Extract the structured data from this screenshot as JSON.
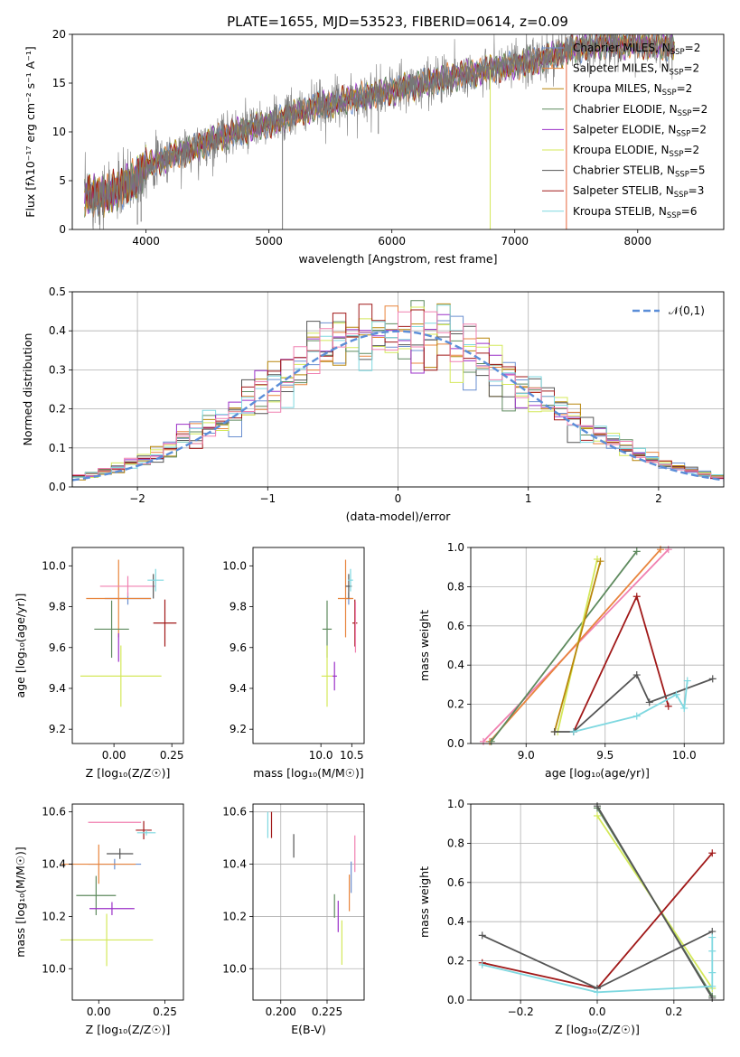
{
  "title": "PLATE=1655, MJD=53523, FIBERID=0614, z=0.09",
  "colors": {
    "chabrier_miles": "#6a8fd0",
    "salpeter_miles": "#e8843c",
    "kroupa_miles": "#b8860b",
    "chabrier_elodie": "#5e8a5e",
    "salpeter_elodie": "#9b30c8",
    "kroupa_elodie": "#d4e85a",
    "chabrier_stelib": "#555555",
    "salpeter_stelib": "#a01818",
    "kroupa_stelib": "#7fd8e0",
    "extra_pink": "#f080b0",
    "gauss": "#5b8ed8"
  },
  "chart_data": [
    {
      "id": "spectrum",
      "type": "line",
      "xlabel": "wavelength [Angstrom, rest frame]",
      "ylabel": "Flux [fλ10⁻¹⁷ erg cm⁻² s⁻¹ A⁻¹]",
      "xlim": [
        3400,
        8700
      ],
      "ylim": [
        0,
        20
      ],
      "xticks": [
        "4000",
        "5000",
        "6000",
        "7000",
        "8000"
      ],
      "yticks": [
        "0",
        "5",
        "10",
        "15",
        "20"
      ],
      "legend_position": "right",
      "legend": [
        {
          "key": "chabrier_miles",
          "base": "Chabrier MILES, N",
          "sub": "SSP",
          "tail": "=2"
        },
        {
          "key": "salpeter_miles",
          "base": "Salpeter MILES, N",
          "sub": "SSP",
          "tail": "=2"
        },
        {
          "key": "kroupa_miles",
          "base": "Kroupa MILES, N",
          "sub": "SSP",
          "tail": "=2"
        },
        {
          "key": "chabrier_elodie",
          "base": "Chabrier ELODIE, N",
          "sub": "SSP",
          "tail": "=2"
        },
        {
          "key": "salpeter_elodie",
          "base": "Salpeter ELODIE, N",
          "sub": "SSP",
          "tail": "=2"
        },
        {
          "key": "kroupa_elodie",
          "base": "Kroupa ELODIE, N",
          "sub": "SSP",
          "tail": "=2"
        },
        {
          "key": "chabrier_stelib",
          "base": "Chabrier STELIB, N",
          "sub": "SSP",
          "tail": "=5"
        },
        {
          "key": "salpeter_stelib",
          "base": "Salpeter STELIB, N",
          "sub": "SSP",
          "tail": "=3"
        },
        {
          "key": "kroupa_stelib",
          "base": "Kroupa STELIB, N",
          "sub": "SSP",
          "tail": "=6"
        }
      ],
      "continuum": [
        [
          3500,
          3.4
        ],
        [
          3700,
          3.6
        ],
        [
          3900,
          5.0
        ],
        [
          4000,
          6.5
        ],
        [
          4200,
          7.5
        ],
        [
          4400,
          8.3
        ],
        [
          4600,
          9.5
        ],
        [
          4800,
          10.2
        ],
        [
          5000,
          10.8
        ],
        [
          5200,
          11.8
        ],
        [
          5400,
          12.6
        ],
        [
          5600,
          13.2
        ],
        [
          5800,
          13.7
        ],
        [
          6000,
          14.2
        ],
        [
          6200,
          14.8
        ],
        [
          6400,
          15.4
        ],
        [
          6600,
          15.9
        ],
        [
          6800,
          16.4
        ],
        [
          7000,
          16.8
        ],
        [
          7200,
          17.4
        ],
        [
          7400,
          18.2
        ],
        [
          7600,
          18.8
        ],
        [
          7800,
          18.9
        ],
        [
          8000,
          19.0
        ],
        [
          8200,
          18.8
        ],
        [
          8300,
          18.7
        ]
      ],
      "absorption_dips": [
        [
          5110,
          0.0
        ],
        [
          5890,
          9.8
        ],
        [
          6800,
          0.0
        ],
        [
          7420,
          0.0
        ],
        [
          3930,
          0.5
        ],
        [
          3960,
          0.8
        ]
      ]
    },
    {
      "id": "residual_hist",
      "type": "line",
      "xlabel": "(data-model)/error",
      "ylabel": "Normed distribution",
      "xlim": [
        -2.5,
        2.5
      ],
      "ylim": [
        0,
        0.5
      ],
      "xticks": [
        "−2",
        "−1",
        "0",
        "1",
        "2"
      ],
      "yticks": [
        "0.0",
        "0.1",
        "0.2",
        "0.3",
        "0.4",
        "0.5"
      ],
      "legend": [
        {
          "key": "gauss",
          "label": "𝒩(0,1)"
        }
      ],
      "legend_position": "top-right",
      "bin_width": 0.1,
      "bin_start": -2.5
    },
    {
      "id": "age_vs_z",
      "type": "scatter",
      "xlabel": "Z [log₁₀(Z/Z☉)]",
      "ylabel": "age  [log₁₀(age/yr)]",
      "xlim": [
        -0.18,
        0.3
      ],
      "ylim": [
        9.13,
        10.09
      ],
      "xticks": [
        [
          0.0,
          "0.00"
        ],
        [
          0.25,
          "0.25"
        ]
      ],
      "yticks": [
        [
          9.2,
          "9.2"
        ],
        [
          9.4,
          "9.4"
        ],
        [
          9.6,
          "9.6"
        ],
        [
          9.8,
          "9.8"
        ],
        [
          10.0,
          "10.0"
        ]
      ],
      "points": [
        {
          "key": "chabrier_miles",
          "x": 0.06,
          "y": 9.84,
          "xe": 0.2,
          "ye": 0.06
        },
        {
          "key": "salpeter_miles",
          "x": 0.02,
          "y": 9.84,
          "xe": 0.28,
          "ye": 0.38
        },
        {
          "key": "extra_pink",
          "x": 0.06,
          "y": 9.9,
          "xe": 0.24,
          "ye": 0.1
        },
        {
          "key": "chabrier_elodie",
          "x": -0.01,
          "y": 9.69,
          "xe": 0.15,
          "ye": 0.28
        },
        {
          "key": "salpeter_elodie",
          "x": 0.02,
          "y": 9.6,
          "xe": 0.0,
          "ye": 0.14
        },
        {
          "key": "kroupa_elodie",
          "x": 0.03,
          "y": 9.46,
          "xe": 0.35,
          "ye": 0.3
        },
        {
          "key": "chabrier_stelib",
          "x": 0.17,
          "y": 9.9,
          "xe": 0.0,
          "ye": 0.12
        },
        {
          "key": "salpeter_stelib",
          "x": 0.22,
          "y": 9.72,
          "xe": 0.1,
          "ye": 0.23
        },
        {
          "key": "kroupa_stelib",
          "x": 0.18,
          "y": 9.93,
          "xe": 0.07,
          "ye": 0.11
        }
      ]
    },
    {
      "id": "age_vs_mass",
      "type": "scatter",
      "xlabel": "mass [log₁₀(M/M☉)]",
      "xlim": [
        8.9,
        10.7
      ],
      "ylim": [
        9.13,
        10.09
      ],
      "xticks": [
        [
          10.0,
          "10.0"
        ],
        [
          10.5,
          "10.5"
        ]
      ],
      "yticks": [
        [
          9.2,
          "9.2"
        ],
        [
          9.4,
          "9.4"
        ],
        [
          9.6,
          "9.6"
        ],
        [
          9.8,
          "9.8"
        ],
        [
          10.0,
          "10.0"
        ]
      ],
      "points": [
        {
          "key": "chabrier_miles",
          "x": 10.45,
          "y": 9.84,
          "xe": 0.1,
          "ye": 0.06
        },
        {
          "key": "salpeter_miles",
          "x": 10.4,
          "y": 9.84,
          "xe": 0.25,
          "ye": 0.38
        },
        {
          "key": "chabrier_elodie",
          "x": 10.1,
          "y": 9.69,
          "xe": 0.15,
          "ye": 0.28
        },
        {
          "key": "salpeter_elodie",
          "x": 10.22,
          "y": 9.46,
          "xe": 0.08,
          "ye": 0.14
        },
        {
          "key": "kroupa_elodie",
          "x": 10.1,
          "y": 9.46,
          "xe": 0.18,
          "ye": 0.3
        },
        {
          "key": "chabrier_stelib",
          "x": 10.45,
          "y": 9.9,
          "xe": 0.1,
          "ye": 0.12
        },
        {
          "key": "salpeter_stelib",
          "x": 10.55,
          "y": 9.72,
          "xe": 0.08,
          "ye": 0.23
        },
        {
          "key": "kroupa_stelib",
          "x": 10.48,
          "y": 9.93,
          "xe": 0.08,
          "ye": 0.11
        },
        {
          "key": "extra_pink",
          "x": 10.56,
          "y": 9.7,
          "xe": 0.0,
          "ye": 0.25
        }
      ]
    },
    {
      "id": "weight_vs_age",
      "type": "line",
      "xlabel": "age  [log₁₀(age/yr)]",
      "ylabel": "mass weight",
      "xlim": [
        8.65,
        10.25
      ],
      "ylim": [
        0,
        1
      ],
      "xticks": [
        [
          9.0,
          "9.0"
        ],
        [
          9.5,
          "9.5"
        ],
        [
          10.0,
          "10.0"
        ]
      ],
      "yticks": [
        [
          0,
          "0.0"
        ],
        [
          0.2,
          "0.2"
        ],
        [
          0.4,
          "0.4"
        ],
        [
          0.6,
          "0.6"
        ],
        [
          0.8,
          "0.8"
        ],
        [
          1.0,
          "1.0"
        ]
      ],
      "series": [
        {
          "key": "extra_pink",
          "x": [
            8.73,
            9.9
          ],
          "y": [
            0.01,
            0.99
          ]
        },
        {
          "key": "salpeter_miles",
          "x": 8.77,
          "x2": 9.85,
          "xs": [
            8.77,
            9.85
          ],
          "ys": [
            0.01,
            0.99
          ]
        },
        {
          "key": "chabrier_elodie",
          "xs": [
            8.78,
            9.7
          ],
          "ys": [
            0.01,
            0.98
          ]
        },
        {
          "key": "kroupa_elodie",
          "xs": [
            9.2,
            9.45
          ],
          "ys": [
            0.06,
            0.94
          ]
        },
        {
          "key": "kroupa_miles",
          "xs": [
            9.18,
            9.47
          ],
          "ys": [
            0.06,
            0.93
          ]
        },
        {
          "key": "salpeter_stelib",
          "xs": [
            9.3,
            9.7,
            9.9
          ],
          "ys": [
            0.06,
            0.75,
            0.19
          ]
        },
        {
          "key": "chabrier_stelib",
          "xs": [
            9.18,
            9.3,
            9.7,
            9.78,
            10.18
          ],
          "ys": [
            0.06,
            0.06,
            0.35,
            0.21,
            0.33
          ]
        },
        {
          "key": "kroupa_stelib",
          "xs": [
            9.3,
            9.7,
            9.95,
            10.0,
            10.02
          ],
          "ys": [
            0.06,
            0.14,
            0.25,
            0.18,
            0.32
          ]
        }
      ]
    },
    {
      "id": "mass_vs_z",
      "type": "scatter",
      "xlabel": "Z [log₁₀(Z/Z☉)]",
      "ylabel": "mass [log₁₀(M/M☉)]",
      "xlim": [
        -0.1,
        0.32
      ],
      "ylim": [
        9.88,
        10.63
      ],
      "xticks": [
        [
          0.0,
          "0.00"
        ],
        [
          0.25,
          "0.25"
        ]
      ],
      "yticks": [
        [
          10.0,
          "10.0"
        ],
        [
          10.2,
          "10.2"
        ],
        [
          10.4,
          "10.4"
        ],
        [
          10.6,
          "10.6"
        ]
      ],
      "points": [
        {
          "key": "extra_pink",
          "x": 0.06,
          "y": 10.56,
          "xe": 0.2,
          "ye": 0.0
        },
        {
          "key": "salpeter_stelib",
          "x": 0.17,
          "y": 10.53,
          "xe": 0.06,
          "ye": 0.07
        },
        {
          "key": "chabrier_stelib",
          "x": 0.08,
          "y": 10.44,
          "xe": 0.1,
          "ye": 0.04
        },
        {
          "key": "chabrier_miles",
          "x": 0.06,
          "y": 10.4,
          "xe": 0.2,
          "ye": 0.04
        },
        {
          "key": "salpeter_miles",
          "x": 0.0,
          "y": 10.4,
          "xe": 0.28,
          "ye": 0.15
        },
        {
          "key": "chabrier_elodie",
          "x": -0.01,
          "y": 10.28,
          "xe": 0.15,
          "ye": 0.15
        },
        {
          "key": "salpeter_elodie",
          "x": 0.05,
          "y": 10.23,
          "xe": 0.17,
          "ye": 0.05
        },
        {
          "key": "kroupa_elodie",
          "x": 0.03,
          "y": 10.11,
          "xe": 0.35,
          "ye": 0.2
        },
        {
          "key": "kroupa_stelib",
          "x": 0.18,
          "y": 10.52,
          "xe": 0.07,
          "ye": 0.02
        }
      ]
    },
    {
      "id": "mass_vs_ebv",
      "type": "scatter",
      "xlabel": "E(B-V)",
      "xlim": [
        0.185,
        0.245
      ],
      "ylim": [
        9.88,
        10.63
      ],
      "xticks": [
        [
          0.2,
          "0.200"
        ],
        [
          0.225,
          "0.225"
        ]
      ],
      "yticks": [
        [
          10.0,
          "10.0"
        ],
        [
          10.2,
          "10.2"
        ],
        [
          10.4,
          "10.4"
        ],
        [
          10.6,
          "10.6"
        ]
      ],
      "points": [
        {
          "key": "kroupa_stelib",
          "x": 0.193,
          "y": 10.55,
          "ye": 0.1
        },
        {
          "key": "salpeter_stelib",
          "x": 0.195,
          "y": 10.55,
          "ye": 0.1
        },
        {
          "key": "chabrier_stelib",
          "x": 0.207,
          "y": 10.47,
          "ye": 0.09
        },
        {
          "key": "chabrier_elodie",
          "x": 0.229,
          "y": 10.24,
          "ye": 0.09
        },
        {
          "key": "salpeter_elodie",
          "x": 0.231,
          "y": 10.2,
          "ye": 0.12
        },
        {
          "key": "kroupa_elodie",
          "x": 0.233,
          "y": 10.1,
          "ye": 0.17
        },
        {
          "key": "chabrier_miles",
          "x": 0.238,
          "y": 10.35,
          "ye": 0.12
        },
        {
          "key": "salpeter_miles",
          "x": 0.237,
          "y": 10.29,
          "ye": 0.14
        },
        {
          "key": "extra_pink",
          "x": 0.24,
          "y": 10.44,
          "ye": 0.14
        }
      ]
    },
    {
      "id": "weight_vs_z",
      "type": "line",
      "xlabel": "Z [log₁₀(Z/Z☉)]",
      "ylabel": "mass weight",
      "xlim": [
        -0.33,
        0.33
      ],
      "ylim": [
        0,
        1
      ],
      "xticks": [
        [
          -0.2,
          "−0.2"
        ],
        [
          0.0,
          "0.0"
        ],
        [
          0.2,
          "0.2"
        ]
      ],
      "yticks": [
        [
          0,
          "0.0"
        ],
        [
          0.2,
          "0.2"
        ],
        [
          0.4,
          "0.4"
        ],
        [
          0.6,
          "0.6"
        ],
        [
          0.8,
          "0.8"
        ],
        [
          1.0,
          "1.0"
        ]
      ],
      "series": [
        {
          "key": "kroupa_elodie",
          "xs": [
            0.0,
            0.3
          ],
          "ys": [
            0.94,
            0.06
          ]
        },
        {
          "key": "chabrier_elodie",
          "xs": [
            0.0,
            0.3
          ],
          "ys": [
            0.98,
            0.02
          ]
        },
        {
          "key": "chabrier_stelib",
          "xs": [
            0.0,
            0.3
          ],
          "ys": [
            0.99,
            0.01
          ]
        },
        {
          "key": "salpeter_stelib",
          "xs": [
            -0.3,
            0.0,
            0.3
          ],
          "ys": [
            0.19,
            0.06,
            0.75
          ]
        },
        {
          "key": "chabrier_stelib",
          "xs": [
            -0.3,
            0.0,
            0.3
          ],
          "ys": [
            0.33,
            0.06,
            0.35
          ]
        },
        {
          "key": "kroupa_stelib",
          "xs": [
            -0.3,
            0.0,
            0.3,
            0.3,
            0.3,
            0.3
          ],
          "ys": [
            0.18,
            0.04,
            0.07,
            0.14,
            0.25,
            0.32
          ]
        }
      ]
    }
  ]
}
